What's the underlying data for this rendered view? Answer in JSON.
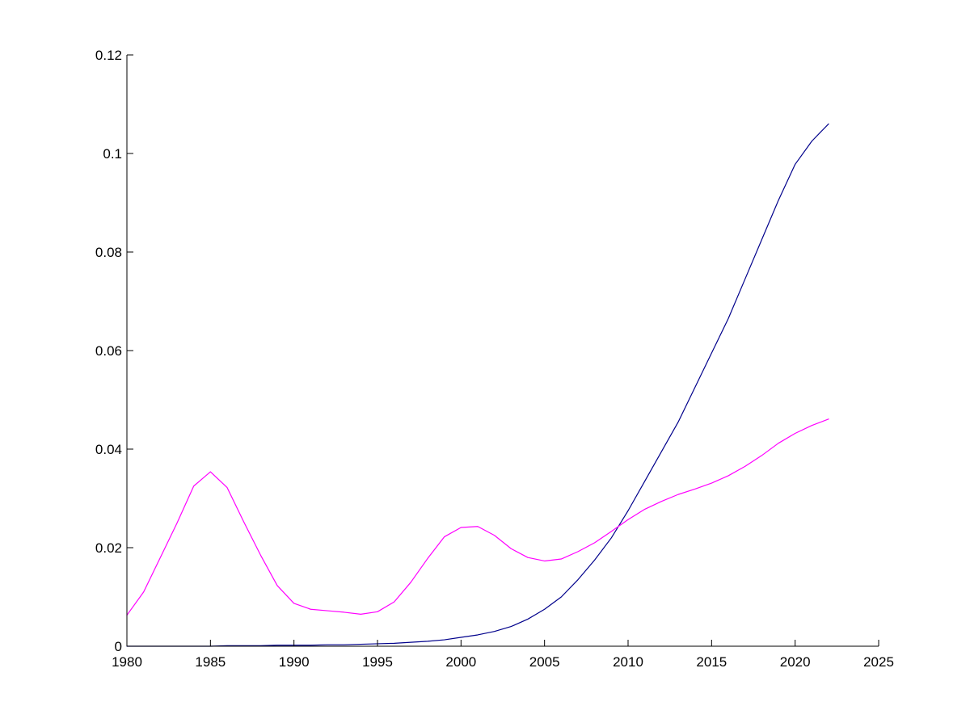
{
  "chart_data": {
    "type": "line",
    "title": "",
    "xlabel": "",
    "ylabel": "",
    "xlim": [
      1980,
      2025
    ],
    "ylim": [
      0,
      0.12
    ],
    "x_ticks": [
      1980,
      1985,
      1990,
      1995,
      2000,
      2005,
      2010,
      2015,
      2020,
      2025
    ],
    "x_tick_labels": [
      "1980",
      "1985",
      "1990",
      "1995",
      "2000",
      "2005",
      "2010",
      "2015",
      "2020",
      "2025"
    ],
    "y_ticks": [
      0,
      0.02,
      0.04,
      0.06,
      0.08,
      0.1,
      0.12
    ],
    "y_tick_labels": [
      "0",
      "0.02",
      "0.04",
      "0.06",
      "0.08",
      "0.1",
      "0.12"
    ],
    "grid": false,
    "legend": "none",
    "x": [
      1980,
      1981,
      1982,
      1983,
      1984,
      1985,
      1986,
      1987,
      1988,
      1989,
      1990,
      1991,
      1992,
      1993,
      1994,
      1995,
      1996,
      1997,
      1998,
      1999,
      2000,
      2001,
      2002,
      2003,
      2004,
      2005,
      2006,
      2007,
      2008,
      2009,
      2010,
      2011,
      2012,
      2013,
      2014,
      2015,
      2016,
      2017,
      2018,
      2019,
      2020,
      2021,
      2022
    ],
    "series": [
      {
        "color": "#00008b",
        "values": [
          0.0,
          0.0,
          0.0,
          0.0,
          0.0,
          0.0,
          0.0001,
          0.0001,
          0.0001,
          0.0002,
          0.0002,
          0.0002,
          0.0003,
          0.0003,
          0.0004,
          0.0005,
          0.0006,
          0.0008,
          0.001,
          0.0013,
          0.0018,
          0.0023,
          0.003,
          0.004,
          0.0055,
          0.0075,
          0.01,
          0.0135,
          0.0175,
          0.022,
          0.0275,
          0.0335,
          0.0395,
          0.0455,
          0.0525,
          0.0595,
          0.0665,
          0.0745,
          0.0825,
          0.0905,
          0.0978,
          0.1025,
          0.106
        ]
      },
      {
        "color": "#ff00ff",
        "values": [
          0.0063,
          0.011,
          0.018,
          0.025,
          0.0325,
          0.0354,
          0.0322,
          0.0252,
          0.0185,
          0.0123,
          0.0087,
          0.0075,
          0.0072,
          0.0069,
          0.0065,
          0.007,
          0.009,
          0.013,
          0.0178,
          0.0222,
          0.0241,
          0.0243,
          0.0225,
          0.0198,
          0.018,
          0.0173,
          0.0177,
          0.0192,
          0.021,
          0.0233,
          0.0257,
          0.0278,
          0.0294,
          0.0308,
          0.0319,
          0.0331,
          0.0346,
          0.0365,
          0.0387,
          0.0412,
          0.0432,
          0.0448,
          0.0461
        ]
      }
    ]
  }
}
